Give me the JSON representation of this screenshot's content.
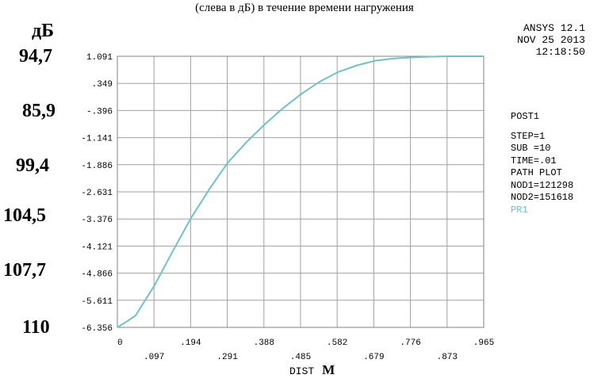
{
  "caption": "(слева в дБ) в течение времени нагружения",
  "db_label": "дБ",
  "db_values": [
    "94,7",
    "85,9",
    "99,4",
    "104,5",
    "107,7",
    "110"
  ],
  "header": {
    "product": "ANSYS 12.1",
    "date": "NOV 25 2013",
    "time": "12:18:50"
  },
  "info": {
    "post": "POST1",
    "step": "STEP=1",
    "sub": "SUB =10",
    "time": "TIME=.01",
    "plot": "PATH PLOT",
    "nod1": "NOD1=121298",
    "nod2": "NOD2=151618",
    "series": "PR1"
  },
  "unit": "М",
  "colors": {
    "series": "#6cc3c8",
    "grid": "#a0a0a0",
    "frame": "#808080"
  },
  "chart_data": {
    "type": "line",
    "xlabel": "DIST",
    "ylim": [
      -6.356,
      1.091
    ],
    "xlim": [
      0,
      0.965
    ],
    "yticks": [
      "1.091",
      ".349",
      "-.396",
      "-1.141",
      "-1.886",
      "-2.631",
      "-3.376",
      "-4.121",
      "-4.866",
      "-5.611",
      "-6.356"
    ],
    "xticks_top": [
      "0",
      ".194",
      ".388",
      ".582",
      ".776",
      ".965"
    ],
    "xticks_bottom": [
      ".097",
      ".291",
      ".485",
      ".679",
      ".873"
    ],
    "series": [
      {
        "name": "PR1",
        "x": [
          0,
          0.024,
          0.048,
          0.097,
          0.145,
          0.194,
          0.243,
          0.291,
          0.34,
          0.388,
          0.437,
          0.485,
          0.534,
          0.582,
          0.631,
          0.679,
          0.728,
          0.776,
          0.825,
          0.873,
          0.922,
          0.965
        ],
        "y": [
          -6.356,
          -6.2,
          -6.03,
          -5.22,
          -4.28,
          -3.35,
          -2.55,
          -1.83,
          -1.27,
          -0.78,
          -0.33,
          0.06,
          0.4,
          0.66,
          0.84,
          0.97,
          1.03,
          1.06,
          1.08,
          1.09,
          1.09,
          1.091
        ]
      }
    ]
  }
}
